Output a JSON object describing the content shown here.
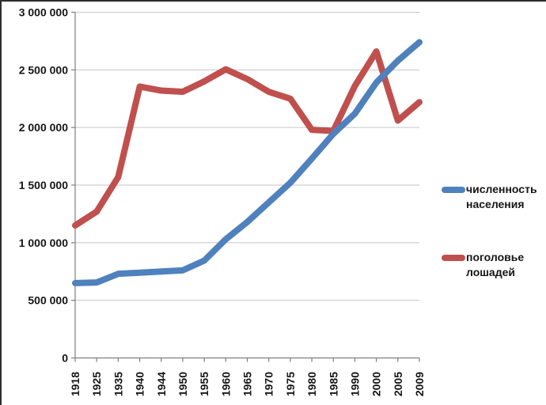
{
  "chart_data": {
    "type": "line",
    "title": "",
    "categories": [
      "1918",
      "1925",
      "1935",
      "1940",
      "1944",
      "1950",
      "1955",
      "1960",
      "1965",
      "1970",
      "1975",
      "1980",
      "1985",
      "1990",
      "2000",
      "2005",
      "2009"
    ],
    "series": [
      {
        "name": "численность населения",
        "color": "#4F81BD",
        "values": [
          650000,
          655000,
          730000,
          740000,
          750000,
          760000,
          845000,
          1030000,
          1180000,
          1350000,
          1520000,
          1730000,
          1945000,
          2120000,
          2390000,
          2580000,
          2740000
        ]
      },
      {
        "name": "поголовье лошадей",
        "color": "#C0504D",
        "values": [
          1150000,
          1270000,
          1570000,
          2355000,
          2320000,
          2310000,
          2400000,
          2505000,
          2420000,
          2310000,
          2250000,
          1980000,
          1970000,
          2360000,
          2660000,
          2060000,
          2220000
        ]
      }
    ],
    "y_axis": {
      "min": 0,
      "max": 3000000,
      "step": 500000,
      "tick_labels": [
        "0",
        "500 000",
        "1 000 000",
        "1 500 000",
        "2 000 000",
        "2 500 000",
        "3 000 000"
      ]
    },
    "x_axis": {
      "tick_labels": [
        "1918",
        "1925",
        "1935",
        "1940",
        "1944",
        "1950",
        "1955",
        "1960",
        "1965",
        "1970",
        "1975",
        "1980",
        "1985",
        "1990",
        "2000",
        "2005",
        "2009"
      ],
      "label_rotation": -90
    },
    "grid": true,
    "legend_position": "right",
    "colors": {
      "gridline": "#c6c6c6",
      "axis": "#7f7f7f",
      "label_text": "#161616",
      "background": "#ffffff"
    }
  }
}
